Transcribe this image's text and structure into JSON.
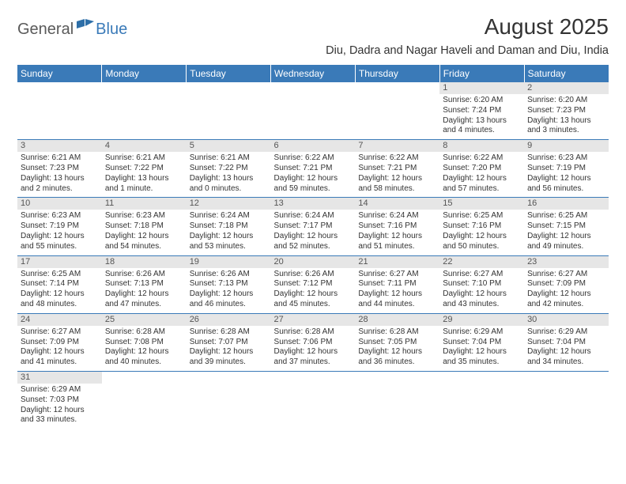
{
  "brand": {
    "part1": "General",
    "part2": "Blue"
  },
  "header": {
    "month_title": "August 2025",
    "location": "Diu, Dadra and Nagar Haveli and Daman and Diu, India"
  },
  "colors": {
    "header_bg": "#3a7ab8",
    "header_text": "#ffffff",
    "daynum_bg": "#e6e6e6",
    "row_divider": "#3a7ab8",
    "body_text": "#333333"
  },
  "weekdays": [
    "Sunday",
    "Monday",
    "Tuesday",
    "Wednesday",
    "Thursday",
    "Friday",
    "Saturday"
  ],
  "weeks": [
    [
      {
        "day": "",
        "sunrise": "",
        "sunset": "",
        "daylight1": "",
        "daylight2": ""
      },
      {
        "day": "",
        "sunrise": "",
        "sunset": "",
        "daylight1": "",
        "daylight2": ""
      },
      {
        "day": "",
        "sunrise": "",
        "sunset": "",
        "daylight1": "",
        "daylight2": ""
      },
      {
        "day": "",
        "sunrise": "",
        "sunset": "",
        "daylight1": "",
        "daylight2": ""
      },
      {
        "day": "",
        "sunrise": "",
        "sunset": "",
        "daylight1": "",
        "daylight2": ""
      },
      {
        "day": "1",
        "sunrise": "Sunrise: 6:20 AM",
        "sunset": "Sunset: 7:24 PM",
        "daylight1": "Daylight: 13 hours",
        "daylight2": "and 4 minutes."
      },
      {
        "day": "2",
        "sunrise": "Sunrise: 6:20 AM",
        "sunset": "Sunset: 7:23 PM",
        "daylight1": "Daylight: 13 hours",
        "daylight2": "and 3 minutes."
      }
    ],
    [
      {
        "day": "3",
        "sunrise": "Sunrise: 6:21 AM",
        "sunset": "Sunset: 7:23 PM",
        "daylight1": "Daylight: 13 hours",
        "daylight2": "and 2 minutes."
      },
      {
        "day": "4",
        "sunrise": "Sunrise: 6:21 AM",
        "sunset": "Sunset: 7:22 PM",
        "daylight1": "Daylight: 13 hours",
        "daylight2": "and 1 minute."
      },
      {
        "day": "5",
        "sunrise": "Sunrise: 6:21 AM",
        "sunset": "Sunset: 7:22 PM",
        "daylight1": "Daylight: 13 hours",
        "daylight2": "and 0 minutes."
      },
      {
        "day": "6",
        "sunrise": "Sunrise: 6:22 AM",
        "sunset": "Sunset: 7:21 PM",
        "daylight1": "Daylight: 12 hours",
        "daylight2": "and 59 minutes."
      },
      {
        "day": "7",
        "sunrise": "Sunrise: 6:22 AM",
        "sunset": "Sunset: 7:21 PM",
        "daylight1": "Daylight: 12 hours",
        "daylight2": "and 58 minutes."
      },
      {
        "day": "8",
        "sunrise": "Sunrise: 6:22 AM",
        "sunset": "Sunset: 7:20 PM",
        "daylight1": "Daylight: 12 hours",
        "daylight2": "and 57 minutes."
      },
      {
        "day": "9",
        "sunrise": "Sunrise: 6:23 AM",
        "sunset": "Sunset: 7:19 PM",
        "daylight1": "Daylight: 12 hours",
        "daylight2": "and 56 minutes."
      }
    ],
    [
      {
        "day": "10",
        "sunrise": "Sunrise: 6:23 AM",
        "sunset": "Sunset: 7:19 PM",
        "daylight1": "Daylight: 12 hours",
        "daylight2": "and 55 minutes."
      },
      {
        "day": "11",
        "sunrise": "Sunrise: 6:23 AM",
        "sunset": "Sunset: 7:18 PM",
        "daylight1": "Daylight: 12 hours",
        "daylight2": "and 54 minutes."
      },
      {
        "day": "12",
        "sunrise": "Sunrise: 6:24 AM",
        "sunset": "Sunset: 7:18 PM",
        "daylight1": "Daylight: 12 hours",
        "daylight2": "and 53 minutes."
      },
      {
        "day": "13",
        "sunrise": "Sunrise: 6:24 AM",
        "sunset": "Sunset: 7:17 PM",
        "daylight1": "Daylight: 12 hours",
        "daylight2": "and 52 minutes."
      },
      {
        "day": "14",
        "sunrise": "Sunrise: 6:24 AM",
        "sunset": "Sunset: 7:16 PM",
        "daylight1": "Daylight: 12 hours",
        "daylight2": "and 51 minutes."
      },
      {
        "day": "15",
        "sunrise": "Sunrise: 6:25 AM",
        "sunset": "Sunset: 7:16 PM",
        "daylight1": "Daylight: 12 hours",
        "daylight2": "and 50 minutes."
      },
      {
        "day": "16",
        "sunrise": "Sunrise: 6:25 AM",
        "sunset": "Sunset: 7:15 PM",
        "daylight1": "Daylight: 12 hours",
        "daylight2": "and 49 minutes."
      }
    ],
    [
      {
        "day": "17",
        "sunrise": "Sunrise: 6:25 AM",
        "sunset": "Sunset: 7:14 PM",
        "daylight1": "Daylight: 12 hours",
        "daylight2": "and 48 minutes."
      },
      {
        "day": "18",
        "sunrise": "Sunrise: 6:26 AM",
        "sunset": "Sunset: 7:13 PM",
        "daylight1": "Daylight: 12 hours",
        "daylight2": "and 47 minutes."
      },
      {
        "day": "19",
        "sunrise": "Sunrise: 6:26 AM",
        "sunset": "Sunset: 7:13 PM",
        "daylight1": "Daylight: 12 hours",
        "daylight2": "and 46 minutes."
      },
      {
        "day": "20",
        "sunrise": "Sunrise: 6:26 AM",
        "sunset": "Sunset: 7:12 PM",
        "daylight1": "Daylight: 12 hours",
        "daylight2": "and 45 minutes."
      },
      {
        "day": "21",
        "sunrise": "Sunrise: 6:27 AM",
        "sunset": "Sunset: 7:11 PM",
        "daylight1": "Daylight: 12 hours",
        "daylight2": "and 44 minutes."
      },
      {
        "day": "22",
        "sunrise": "Sunrise: 6:27 AM",
        "sunset": "Sunset: 7:10 PM",
        "daylight1": "Daylight: 12 hours",
        "daylight2": "and 43 minutes."
      },
      {
        "day": "23",
        "sunrise": "Sunrise: 6:27 AM",
        "sunset": "Sunset: 7:09 PM",
        "daylight1": "Daylight: 12 hours",
        "daylight2": "and 42 minutes."
      }
    ],
    [
      {
        "day": "24",
        "sunrise": "Sunrise: 6:27 AM",
        "sunset": "Sunset: 7:09 PM",
        "daylight1": "Daylight: 12 hours",
        "daylight2": "and 41 minutes."
      },
      {
        "day": "25",
        "sunrise": "Sunrise: 6:28 AM",
        "sunset": "Sunset: 7:08 PM",
        "daylight1": "Daylight: 12 hours",
        "daylight2": "and 40 minutes."
      },
      {
        "day": "26",
        "sunrise": "Sunrise: 6:28 AM",
        "sunset": "Sunset: 7:07 PM",
        "daylight1": "Daylight: 12 hours",
        "daylight2": "and 39 minutes."
      },
      {
        "day": "27",
        "sunrise": "Sunrise: 6:28 AM",
        "sunset": "Sunset: 7:06 PM",
        "daylight1": "Daylight: 12 hours",
        "daylight2": "and 37 minutes."
      },
      {
        "day": "28",
        "sunrise": "Sunrise: 6:28 AM",
        "sunset": "Sunset: 7:05 PM",
        "daylight1": "Daylight: 12 hours",
        "daylight2": "and 36 minutes."
      },
      {
        "day": "29",
        "sunrise": "Sunrise: 6:29 AM",
        "sunset": "Sunset: 7:04 PM",
        "daylight1": "Daylight: 12 hours",
        "daylight2": "and 35 minutes."
      },
      {
        "day": "30",
        "sunrise": "Sunrise: 6:29 AM",
        "sunset": "Sunset: 7:04 PM",
        "daylight1": "Daylight: 12 hours",
        "daylight2": "and 34 minutes."
      }
    ],
    [
      {
        "day": "31",
        "sunrise": "Sunrise: 6:29 AM",
        "sunset": "Sunset: 7:03 PM",
        "daylight1": "Daylight: 12 hours",
        "daylight2": "and 33 minutes."
      },
      {
        "day": "",
        "sunrise": "",
        "sunset": "",
        "daylight1": "",
        "daylight2": ""
      },
      {
        "day": "",
        "sunrise": "",
        "sunset": "",
        "daylight1": "",
        "daylight2": ""
      },
      {
        "day": "",
        "sunrise": "",
        "sunset": "",
        "daylight1": "",
        "daylight2": ""
      },
      {
        "day": "",
        "sunrise": "",
        "sunset": "",
        "daylight1": "",
        "daylight2": ""
      },
      {
        "day": "",
        "sunrise": "",
        "sunset": "",
        "daylight1": "",
        "daylight2": ""
      },
      {
        "day": "",
        "sunrise": "",
        "sunset": "",
        "daylight1": "",
        "daylight2": ""
      }
    ]
  ]
}
